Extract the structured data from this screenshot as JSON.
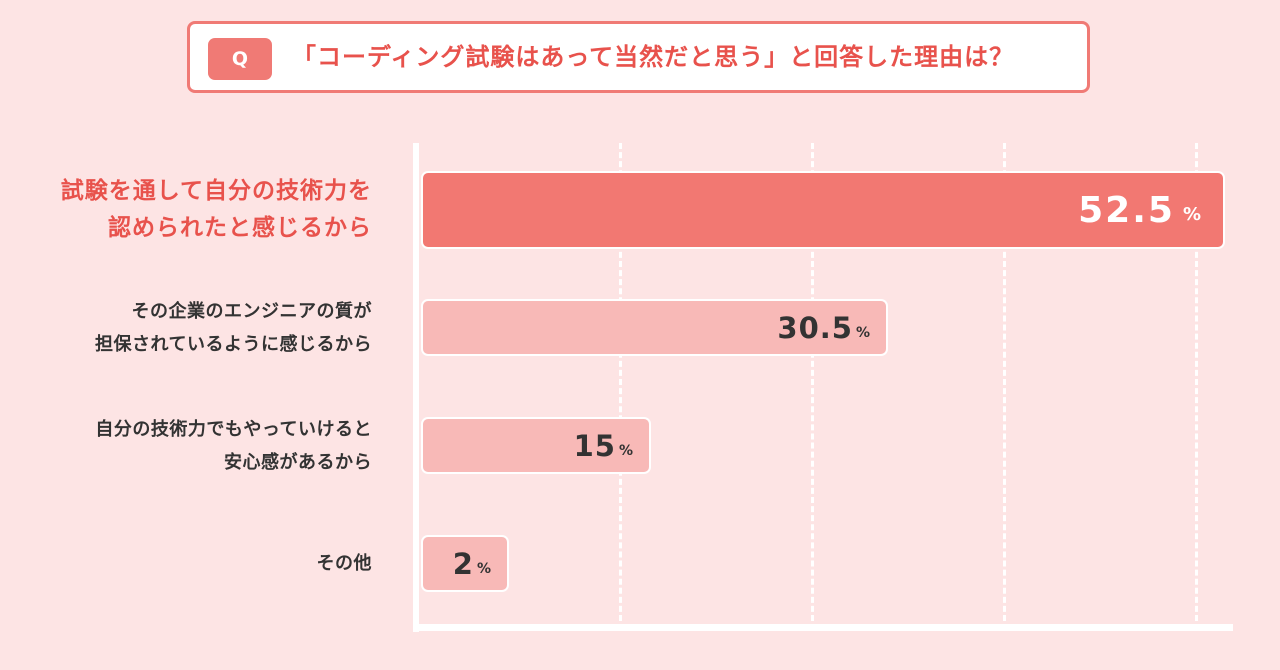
{
  "question": {
    "badge": "Q",
    "text": "「コーディング試験はあって当然だと思う」と回答した理由は？"
  },
  "colors": {
    "background": "#fde4e4",
    "accent": "#f07a75",
    "accent_text": "#e8524c",
    "highlight_bar": "#f27872",
    "normal_bar": "#f8b9b7"
  },
  "chart_data": {
    "type": "bar",
    "orientation": "horizontal",
    "title": "「コーディング試験はあって当然だと思う」と回答した理由は？",
    "categories": [
      [
        "試験を通して自分の技術力を",
        "認められたと感じるから"
      ],
      [
        "その企業のエンジニアの質が",
        "担保されているように感じるから"
      ],
      [
        "自分の技術力でもやっていけると",
        "安心感があるから"
      ],
      [
        "その他"
      ]
    ],
    "values": [
      52.5,
      30.5,
      15,
      2
    ],
    "value_labels": [
      "52.5",
      "30.5",
      "15",
      "2"
    ],
    "unit": "%",
    "xlim": [
      0,
      52.5
    ],
    "grid": true,
    "highlight_index": 0
  }
}
